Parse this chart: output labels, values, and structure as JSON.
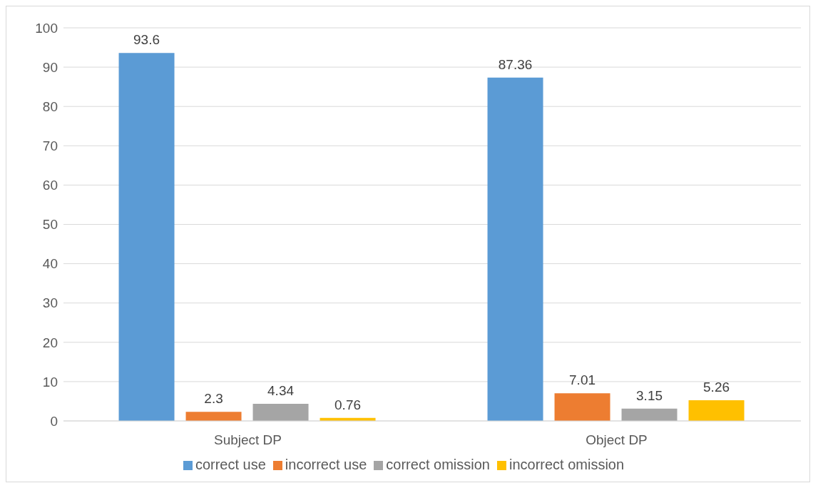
{
  "chart_data": {
    "type": "bar",
    "categories": [
      "Subject DP",
      "Object DP"
    ],
    "series": [
      {
        "name": "correct use",
        "color": "#5b9bd5",
        "values": [
          93.6,
          87.36
        ]
      },
      {
        "name": "incorrect use",
        "color": "#ed7d31",
        "values": [
          2.3,
          7.01
        ]
      },
      {
        "name": "correct omission",
        "color": "#a5a5a5",
        "values": [
          4.34,
          3.15
        ]
      },
      {
        "name": "incorrect omission",
        "color": "#ffc000",
        "values": [
          0.76,
          5.26
        ]
      }
    ],
    "ylim": [
      0,
      100
    ],
    "yticks": [
      0,
      10,
      20,
      30,
      40,
      50,
      60,
      70,
      80,
      90,
      100
    ],
    "grid": "y",
    "legend": "bottom",
    "data_labels": true
  }
}
